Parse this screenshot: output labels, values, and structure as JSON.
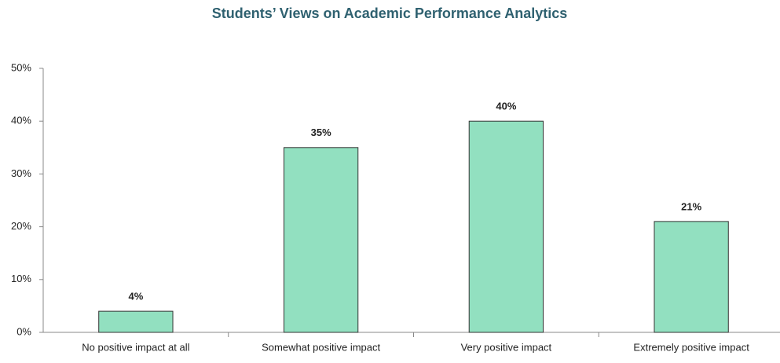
{
  "chart_data": {
    "type": "bar",
    "title": "Students’ Views on Academic Performance Analytics",
    "categories": [
      "No positive impact at all",
      "Somewhat positive impact",
      "Very positive impact",
      "Extremely positive impact"
    ],
    "values": [
      4,
      35,
      40,
      21
    ],
    "value_labels": [
      "4%",
      "35%",
      "40%",
      "21%"
    ],
    "color": "#92e0c0",
    "ylim": [
      0,
      50
    ],
    "yticks": [
      {
        "value": 0,
        "label": "0%"
      },
      {
        "value": 10,
        "label": "10%"
      },
      {
        "value": 20,
        "label": "20%"
      },
      {
        "value": 30,
        "label": "30%"
      },
      {
        "value": 40,
        "label": "40%"
      },
      {
        "value": 50,
        "label": "50%"
      }
    ],
    "grid": false
  }
}
